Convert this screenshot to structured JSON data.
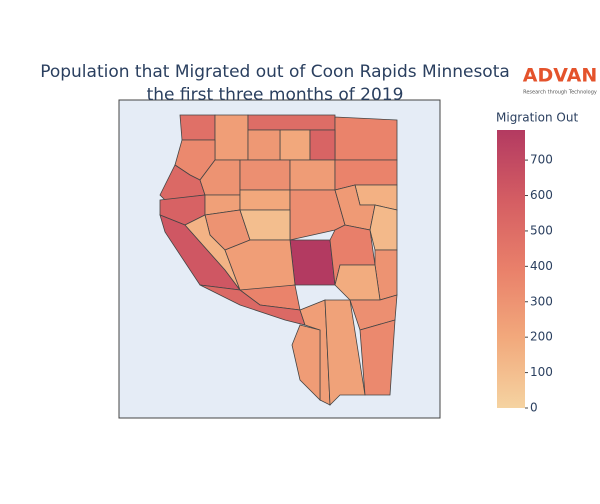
{
  "chart_data": {
    "type": "choropleth",
    "title": [
      "Population that Migrated out of Coon Rapids Minnesota",
      "the first three months of 2019"
    ],
    "logo": {
      "name": "ADVAN",
      "tagline": "Research through Technology"
    },
    "values": [
      480,
      250,
      500,
      380,
      200,
      280,
      550,
      350,
      520,
      300,
      320,
      260,
      380,
      560,
      240,
      200,
      330,
      160,
      620,
      300,
      100,
      270,
      120,
      150,
      785,
      250,
      400,
      300,
      380,
      520,
      250,
      180,
      320,
      230,
      350,
      260
    ],
    "colorscale": [
      "#f5d3a1",
      "#f2a97c",
      "#e9806a",
      "#d45d63",
      "#b33a61"
    ],
    "colorbar": {
      "title": "Migration Out",
      "zlim": [
        0,
        785
      ],
      "ticks": [
        0,
        100,
        200,
        300,
        400,
        500,
        600,
        700
      ]
    }
  }
}
